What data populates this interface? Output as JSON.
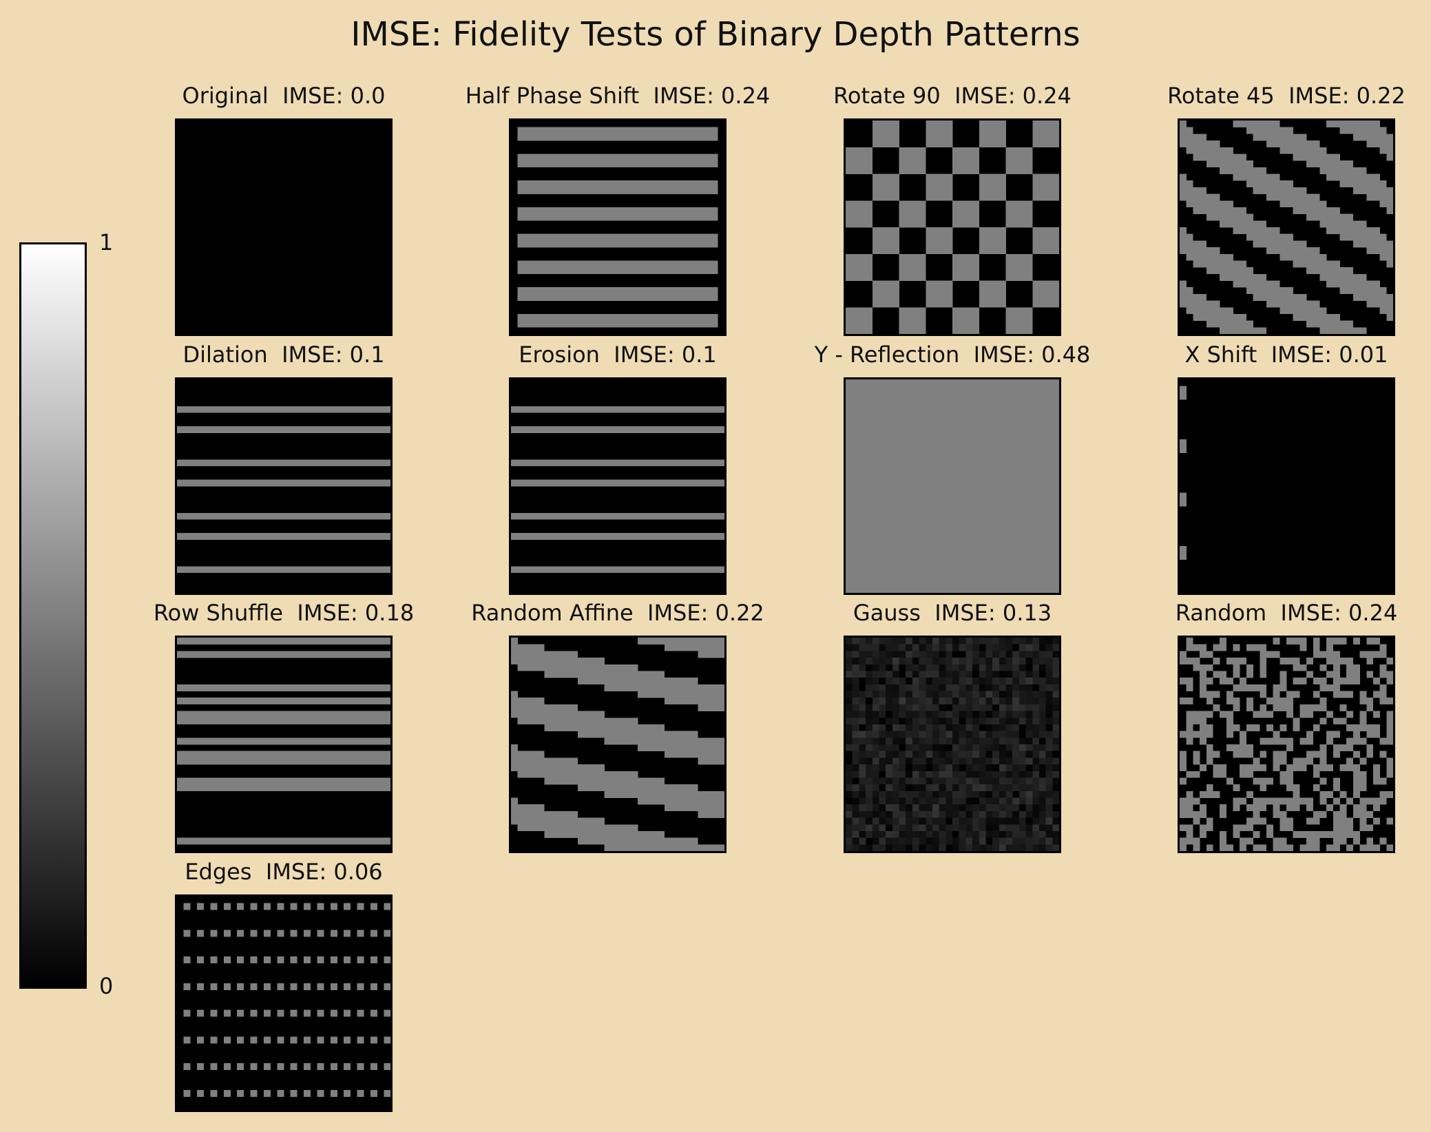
{
  "title": "IMSE: Fidelity Tests of Binary Depth Patterns",
  "colorbar": {
    "min_label": "0",
    "max_label": "1",
    "min": 0,
    "max": 1,
    "colormap": "gray"
  },
  "chart_data": {
    "type": "heatmap",
    "title": "IMSE: Fidelity Tests of Binary Depth Patterns",
    "grid_layout": {
      "rows": 4,
      "cols": 4
    },
    "value_range": [
      0,
      1
    ],
    "grid_resolution": 32,
    "note": "each panel is a 32x32 grayscale error map (black = 0, mid-gray = 0.5)",
    "panels": [
      {
        "name": "Original",
        "title": "Original  IMSE: 0.0",
        "imse": 0.0,
        "pattern": "blank"
      },
      {
        "name": "Half Phase Shift",
        "title": "Half Phase Shift  IMSE: 0.24",
        "imse": 0.24,
        "pattern": "horizontal-stripes"
      },
      {
        "name": "Rotate 90",
        "title": "Rotate 90  IMSE: 0.24",
        "imse": 0.24,
        "pattern": "checkerboard"
      },
      {
        "name": "Rotate 45",
        "title": "Rotate 45  IMSE: 0.22",
        "imse": 0.22,
        "pattern": "diagonal-bands"
      },
      {
        "name": "Dilation",
        "title": "Dilation  IMSE: 0.1",
        "imse": 0.1,
        "pattern": "thin-line-pairs"
      },
      {
        "name": "Erosion",
        "title": "Erosion  IMSE: 0.1",
        "imse": 0.1,
        "pattern": "thin-line-pairs"
      },
      {
        "name": "Y - Reflection",
        "title": "Y - Reflection  IMSE: 0.48",
        "imse": 0.48,
        "pattern": "uniform"
      },
      {
        "name": "X Shift",
        "title": "X Shift  IMSE: 0.01",
        "imse": 0.01,
        "pattern": "left-edge-ticks"
      },
      {
        "name": "Row Shuffle",
        "title": "Row Shuffle  IMSE: 0.18",
        "imse": 0.18,
        "pattern": "irregular-stripes"
      },
      {
        "name": "Random Affine",
        "title": "Random Affine  IMSE: 0.22",
        "imse": 0.22,
        "pattern": "slanted-bands"
      },
      {
        "name": "Gauss",
        "title": "Gauss  IMSE: 0.13",
        "imse": 0.13,
        "pattern": "gaussian-noise"
      },
      {
        "name": "Random",
        "title": "Random  IMSE: 0.24",
        "imse": 0.24,
        "pattern": "binary-noise"
      },
      {
        "name": "Edges",
        "title": "Edges  IMSE: 0.06",
        "imse": 0.06,
        "pattern": "dot-grid"
      }
    ]
  }
}
